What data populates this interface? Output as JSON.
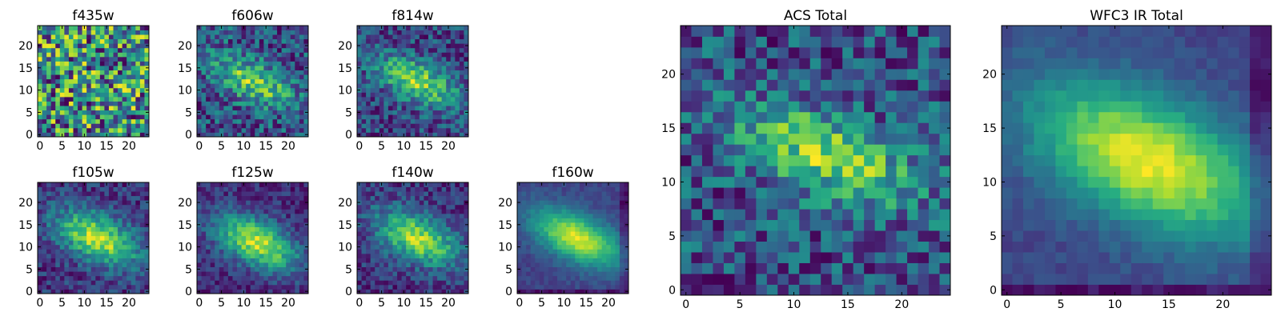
{
  "figure": {
    "background": "#ffffff"
  },
  "chart_data": [
    {
      "type": "heatmap",
      "title": "f435w",
      "grid_size": 25,
      "xlim": [
        0,
        25
      ],
      "ylim": [
        0,
        25
      ],
      "x_ticks": [
        0,
        5,
        10,
        15,
        20
      ],
      "y_ticks": [
        0,
        5,
        10,
        15,
        20
      ],
      "colormap": "viridis",
      "style": "noise",
      "seed": 11,
      "blob": {
        "cx": 13,
        "cy": 12,
        "sx": 7,
        "sy": 3,
        "angle": -25,
        "amp": 0.02
      },
      "noise": 0.55,
      "base": 0.58
    },
    {
      "type": "heatmap",
      "title": "f606w",
      "grid_size": 25,
      "xlim": [
        0,
        25
      ],
      "ylim": [
        0,
        25
      ],
      "x_ticks": [
        0,
        5,
        10,
        15,
        20
      ],
      "y_ticks": [
        0,
        5,
        10,
        15,
        20
      ],
      "colormap": "viridis",
      "style": "noisy-blob",
      "seed": 23,
      "blob": {
        "cx": 12,
        "cy": 12,
        "sx": 7,
        "sy": 3,
        "angle": -25,
        "amp": 0.35
      },
      "noise": 0.35,
      "base": 0.45
    },
    {
      "type": "heatmap",
      "title": "f814w",
      "grid_size": 25,
      "xlim": [
        0,
        25
      ],
      "ylim": [
        0,
        25
      ],
      "x_ticks": [
        0,
        5,
        10,
        15,
        20
      ],
      "y_ticks": [
        0,
        5,
        10,
        15,
        20
      ],
      "colormap": "viridis",
      "style": "noisy-blob",
      "seed": 37,
      "blob": {
        "cx": 13,
        "cy": 12,
        "sx": 7,
        "sy": 3,
        "angle": -25,
        "amp": 0.4
      },
      "noise": 0.3,
      "base": 0.42
    },
    {
      "type": "heatmap",
      "title": "f105w",
      "grid_size": 25,
      "xlim": [
        0,
        25
      ],
      "ylim": [
        0,
        25
      ],
      "x_ticks": [
        0,
        5,
        10,
        15,
        20
      ],
      "y_ticks": [
        0,
        5,
        10,
        15,
        20
      ],
      "colormap": "viridis",
      "style": "blob",
      "seed": 41,
      "blob": {
        "cx": 13,
        "cy": 12,
        "sx": 7,
        "sy": 3.5,
        "angle": -25,
        "amp": 0.5
      },
      "noise": 0.22,
      "base": 0.4
    },
    {
      "type": "heatmap",
      "title": "f125w",
      "grid_size": 25,
      "xlim": [
        0,
        25
      ],
      "ylim": [
        0,
        25
      ],
      "x_ticks": [
        0,
        5,
        10,
        15,
        20
      ],
      "y_ticks": [
        0,
        5,
        10,
        15,
        20
      ],
      "colormap": "viridis",
      "style": "blob",
      "seed": 53,
      "blob": {
        "cx": 13,
        "cy": 11,
        "sx": 7,
        "sy": 3.5,
        "angle": -25,
        "amp": 0.5
      },
      "noise": 0.18,
      "base": 0.4
    },
    {
      "type": "heatmap",
      "title": "f140w",
      "grid_size": 25,
      "xlim": [
        0,
        25
      ],
      "ylim": [
        0,
        25
      ],
      "x_ticks": [
        0,
        5,
        10,
        15,
        20
      ],
      "y_ticks": [
        0,
        5,
        10,
        15,
        20
      ],
      "colormap": "viridis",
      "style": "blob",
      "seed": 67,
      "blob": {
        "cx": 13,
        "cy": 12,
        "sx": 7,
        "sy": 3.5,
        "angle": -25,
        "amp": 0.5
      },
      "noise": 0.22,
      "base": 0.36
    },
    {
      "type": "heatmap",
      "title": "f160w",
      "grid_size": 25,
      "xlim": [
        0,
        25
      ],
      "ylim": [
        0,
        25
      ],
      "x_ticks": [
        0,
        5,
        10,
        15,
        20
      ],
      "y_ticks": [
        0,
        5,
        10,
        15,
        20
      ],
      "colormap": "viridis",
      "style": "smooth-blob",
      "seed": 79,
      "blob": {
        "cx": 13,
        "cy": 12,
        "sx": 7.5,
        "sy": 3.5,
        "angle": -25,
        "amp": 0.6
      },
      "noise": 0.1,
      "base": 0.32
    },
    {
      "type": "heatmap",
      "title": "ACS Total",
      "grid_size": 25,
      "xlim": [
        0,
        25
      ],
      "ylim": [
        0,
        25
      ],
      "x_ticks": [
        0,
        5,
        10,
        15,
        20
      ],
      "y_ticks": [
        0,
        5,
        10,
        15,
        20
      ],
      "colormap": "viridis",
      "style": "noisy-blob",
      "seed": 97,
      "blob": {
        "cx": 13,
        "cy": 12.5,
        "sx": 6,
        "sy": 2.5,
        "angle": -20,
        "amp": 0.4
      },
      "noise": 0.35,
      "base": 0.48
    },
    {
      "type": "heatmap",
      "title": "WFC3 IR Total",
      "grid_size": 25,
      "xlim": [
        0,
        25
      ],
      "ylim": [
        0,
        25
      ],
      "x_ticks": [
        0,
        5,
        10,
        15,
        20
      ],
      "y_ticks": [
        0,
        5,
        10,
        15,
        20
      ],
      "colormap": "viridis",
      "style": "smooth-blob",
      "seed": 113,
      "blob": {
        "cx": 13,
        "cy": 12,
        "sx": 8,
        "sy": 4,
        "angle": -25,
        "amp": 0.55
      },
      "noise": 0.08,
      "base": 0.35
    }
  ]
}
